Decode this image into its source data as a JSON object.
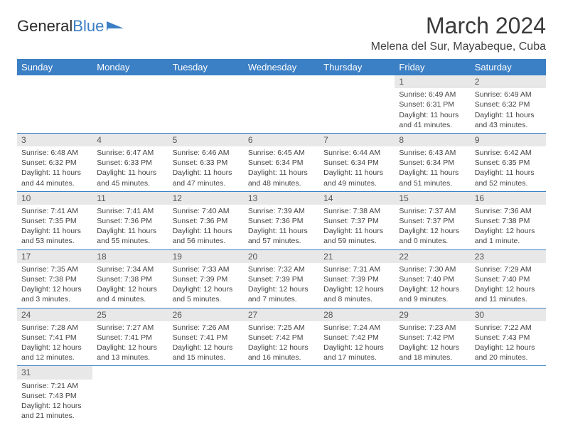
{
  "brand": {
    "part1": "General",
    "part2": "Blue"
  },
  "title": "March 2024",
  "location": "Melena del Sur, Mayabeque, Cuba",
  "colors": {
    "accent": "#3b7fc4",
    "headerText": "#ffffff",
    "dayBg": "#e8e8e8"
  },
  "fonts": {
    "title_size_pt": 32,
    "location_size_pt": 16,
    "cell_size_pt": 10.5
  },
  "weekdays": [
    "Sunday",
    "Monday",
    "Tuesday",
    "Wednesday",
    "Thursday",
    "Friday",
    "Saturday"
  ],
  "weeks": [
    [
      null,
      null,
      null,
      null,
      null,
      {
        "d": "1",
        "sr": "6:49 AM",
        "ss": "6:31 PM",
        "dl": "11 hours and 41 minutes."
      },
      {
        "d": "2",
        "sr": "6:49 AM",
        "ss": "6:32 PM",
        "dl": "11 hours and 43 minutes."
      }
    ],
    [
      {
        "d": "3",
        "sr": "6:48 AM",
        "ss": "6:32 PM",
        "dl": "11 hours and 44 minutes."
      },
      {
        "d": "4",
        "sr": "6:47 AM",
        "ss": "6:33 PM",
        "dl": "11 hours and 45 minutes."
      },
      {
        "d": "5",
        "sr": "6:46 AM",
        "ss": "6:33 PM",
        "dl": "11 hours and 47 minutes."
      },
      {
        "d": "6",
        "sr": "6:45 AM",
        "ss": "6:34 PM",
        "dl": "11 hours and 48 minutes."
      },
      {
        "d": "7",
        "sr": "6:44 AM",
        "ss": "6:34 PM",
        "dl": "11 hours and 49 minutes."
      },
      {
        "d": "8",
        "sr": "6:43 AM",
        "ss": "6:34 PM",
        "dl": "11 hours and 51 minutes."
      },
      {
        "d": "9",
        "sr": "6:42 AM",
        "ss": "6:35 PM",
        "dl": "11 hours and 52 minutes."
      }
    ],
    [
      {
        "d": "10",
        "sr": "7:41 AM",
        "ss": "7:35 PM",
        "dl": "11 hours and 53 minutes."
      },
      {
        "d": "11",
        "sr": "7:41 AM",
        "ss": "7:36 PM",
        "dl": "11 hours and 55 minutes."
      },
      {
        "d": "12",
        "sr": "7:40 AM",
        "ss": "7:36 PM",
        "dl": "11 hours and 56 minutes."
      },
      {
        "d": "13",
        "sr": "7:39 AM",
        "ss": "7:36 PM",
        "dl": "11 hours and 57 minutes."
      },
      {
        "d": "14",
        "sr": "7:38 AM",
        "ss": "7:37 PM",
        "dl": "11 hours and 59 minutes."
      },
      {
        "d": "15",
        "sr": "7:37 AM",
        "ss": "7:37 PM",
        "dl": "12 hours and 0 minutes."
      },
      {
        "d": "16",
        "sr": "7:36 AM",
        "ss": "7:38 PM",
        "dl": "12 hours and 1 minute."
      }
    ],
    [
      {
        "d": "17",
        "sr": "7:35 AM",
        "ss": "7:38 PM",
        "dl": "12 hours and 3 minutes."
      },
      {
        "d": "18",
        "sr": "7:34 AM",
        "ss": "7:38 PM",
        "dl": "12 hours and 4 minutes."
      },
      {
        "d": "19",
        "sr": "7:33 AM",
        "ss": "7:39 PM",
        "dl": "12 hours and 5 minutes."
      },
      {
        "d": "20",
        "sr": "7:32 AM",
        "ss": "7:39 PM",
        "dl": "12 hours and 7 minutes."
      },
      {
        "d": "21",
        "sr": "7:31 AM",
        "ss": "7:39 PM",
        "dl": "12 hours and 8 minutes."
      },
      {
        "d": "22",
        "sr": "7:30 AM",
        "ss": "7:40 PM",
        "dl": "12 hours and 9 minutes."
      },
      {
        "d": "23",
        "sr": "7:29 AM",
        "ss": "7:40 PM",
        "dl": "12 hours and 11 minutes."
      }
    ],
    [
      {
        "d": "24",
        "sr": "7:28 AM",
        "ss": "7:41 PM",
        "dl": "12 hours and 12 minutes."
      },
      {
        "d": "25",
        "sr": "7:27 AM",
        "ss": "7:41 PM",
        "dl": "12 hours and 13 minutes."
      },
      {
        "d": "26",
        "sr": "7:26 AM",
        "ss": "7:41 PM",
        "dl": "12 hours and 15 minutes."
      },
      {
        "d": "27",
        "sr": "7:25 AM",
        "ss": "7:42 PM",
        "dl": "12 hours and 16 minutes."
      },
      {
        "d": "28",
        "sr": "7:24 AM",
        "ss": "7:42 PM",
        "dl": "12 hours and 17 minutes."
      },
      {
        "d": "29",
        "sr": "7:23 AM",
        "ss": "7:42 PM",
        "dl": "12 hours and 18 minutes."
      },
      {
        "d": "30",
        "sr": "7:22 AM",
        "ss": "7:43 PM",
        "dl": "12 hours and 20 minutes."
      }
    ],
    [
      {
        "d": "31",
        "sr": "7:21 AM",
        "ss": "7:43 PM",
        "dl": "12 hours and 21 minutes."
      },
      null,
      null,
      null,
      null,
      null,
      null
    ]
  ],
  "labels": {
    "sunrise": "Sunrise: ",
    "sunset": "Sunset: ",
    "daylight": "Daylight: "
  }
}
